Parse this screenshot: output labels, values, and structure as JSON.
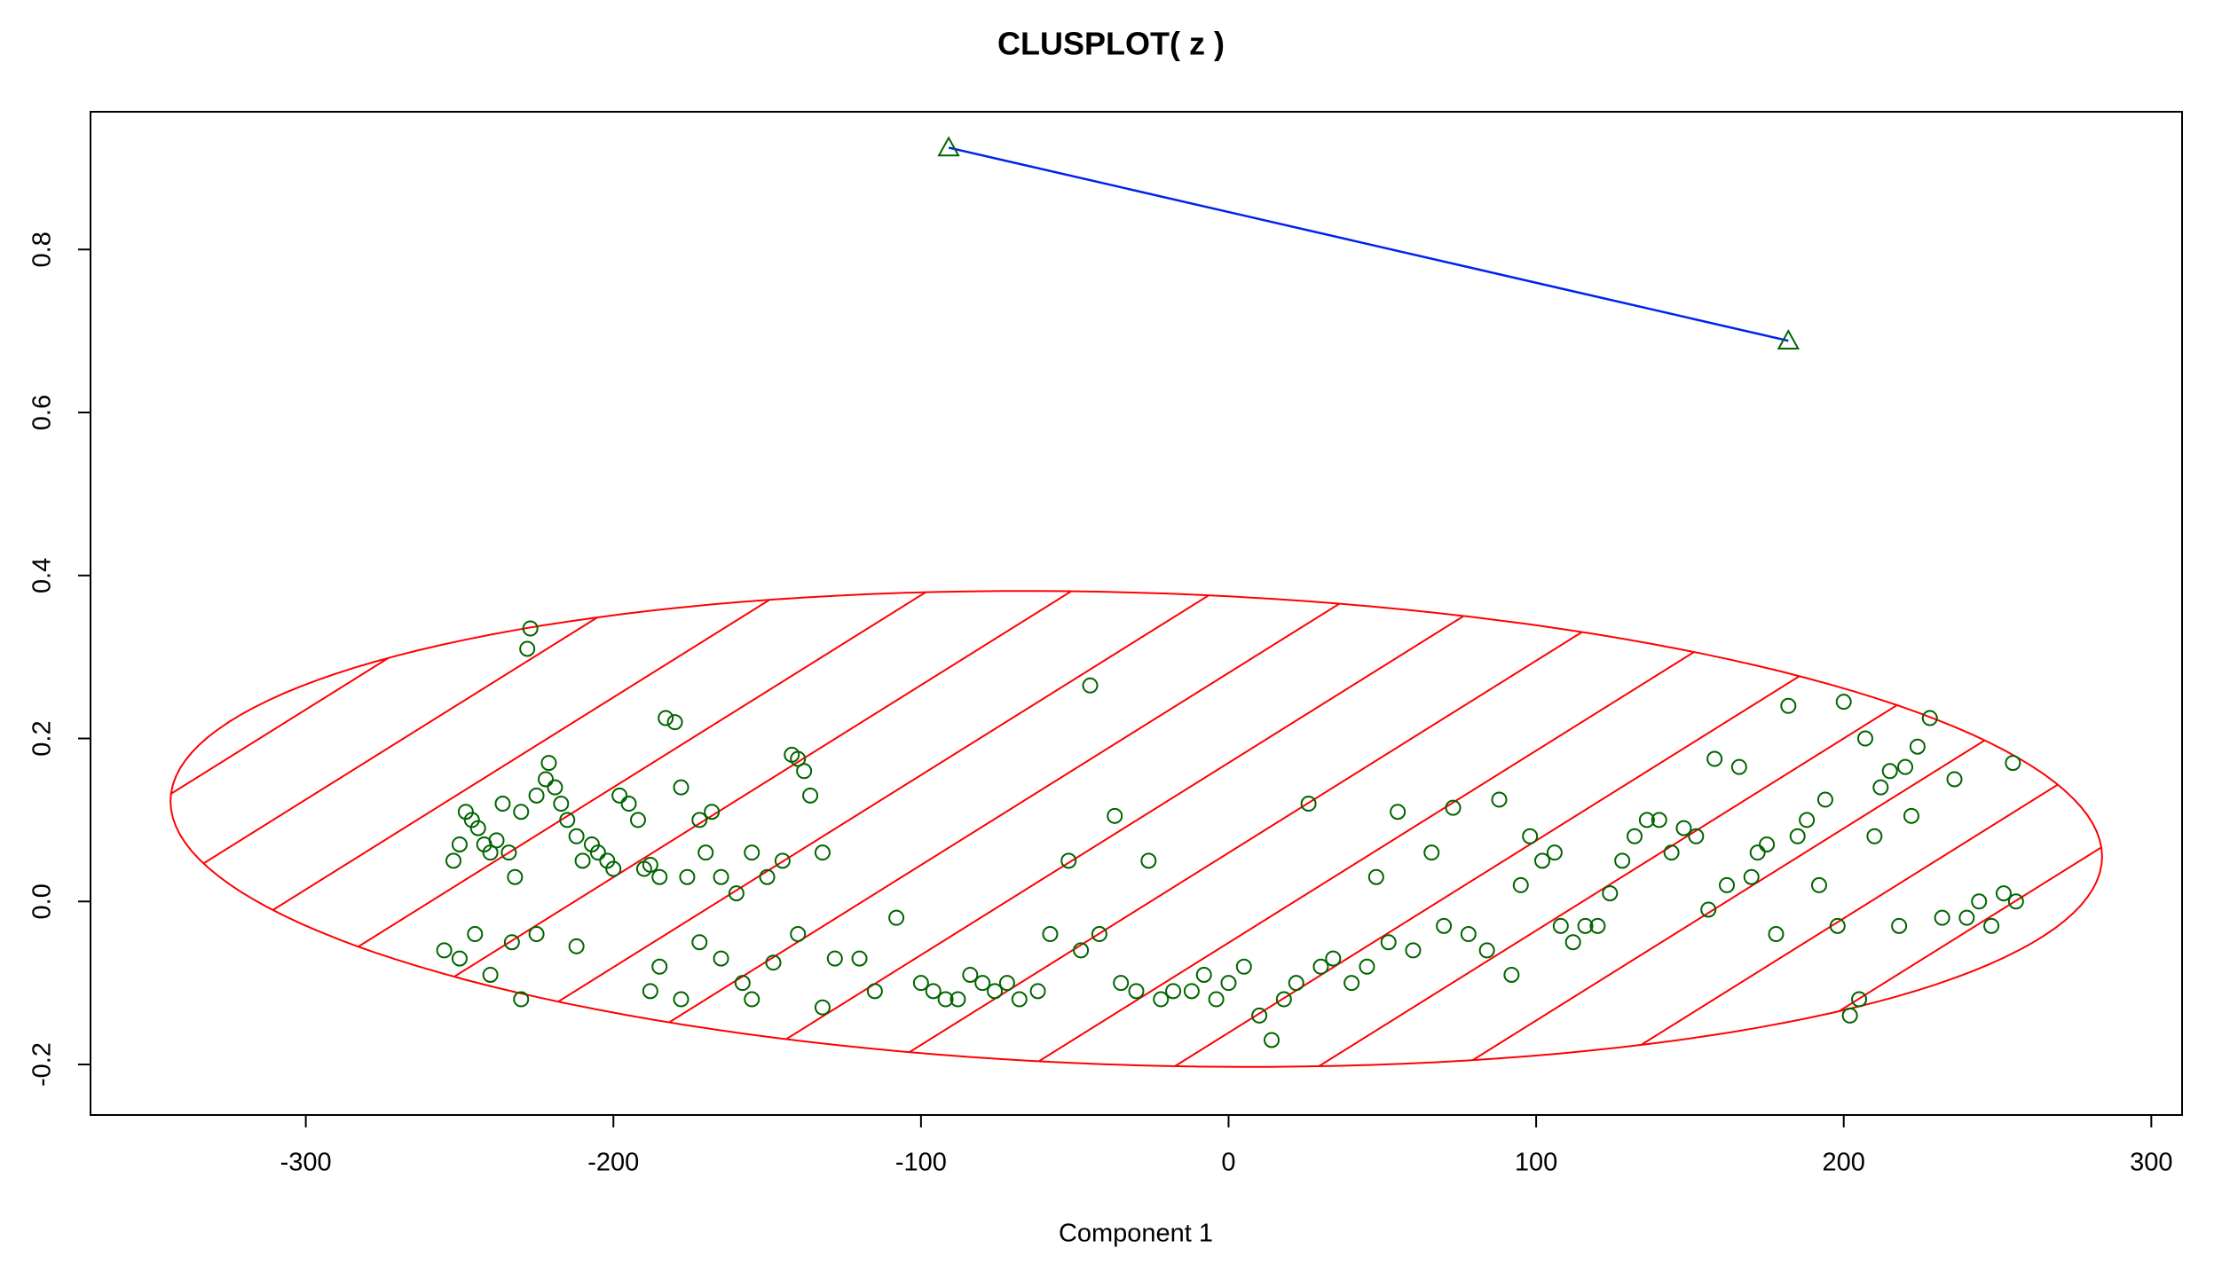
{
  "chart_data": {
    "type": "scatter",
    "title": "CLUSPLOT( z )",
    "xlabel": "Component 1",
    "x": [
      -252,
      -250,
      -248,
      -246,
      -244,
      -242,
      -240,
      -238,
      -236,
      -234,
      -232,
      -230,
      -228,
      -227,
      -225,
      -222,
      -221,
      -219,
      -217,
      -215,
      -212,
      -210,
      -207,
      -205,
      -202,
      -200,
      -198,
      -195,
      -192,
      -190,
      -188,
      -185,
      -183,
      -180,
      -178,
      -176,
      -172,
      -170,
      -168,
      -165,
      -160,
      -155,
      -150,
      -145,
      -142,
      -140,
      -138,
      -136,
      -132,
      -255,
      -250,
      -245,
      -240,
      -233,
      -230,
      -225,
      -212,
      -188,
      -185,
      -178,
      -172,
      -165,
      -158,
      -155,
      -148,
      -140,
      -132,
      -128,
      -120,
      -115,
      -108,
      -100,
      -96,
      -92,
      -88,
      -84,
      -80,
      -76,
      -72,
      -68,
      -62,
      -58,
      -52,
      -48,
      -45,
      -42,
      -37,
      -35,
      -30,
      -26,
      -22,
      -18,
      -12,
      -8,
      -4,
      0,
      5,
      10,
      14,
      18,
      22,
      26,
      30,
      34,
      40,
      45,
      48,
      52,
      55,
      60,
      66,
      70,
      73,
      78,
      84,
      88,
      92,
      95,
      98,
      102,
      106,
      108,
      112,
      116,
      120,
      124,
      128,
      132,
      136,
      140,
      144,
      148,
      152,
      156,
      158,
      162,
      166,
      170,
      172,
      175,
      178,
      182,
      185,
      188,
      192,
      194,
      198,
      200,
      202,
      205,
      207,
      210,
      212,
      215,
      218,
      220,
      222,
      224,
      228,
      232,
      236,
      240,
      244,
      248,
      252,
      255,
      256
    ],
    "y": [
      0.05,
      0.07,
      0.11,
      0.1,
      0.09,
      0.07,
      0.06,
      0.075,
      0.12,
      0.06,
      0.03,
      0.11,
      0.31,
      0.335,
      0.13,
      0.15,
      0.17,
      0.14,
      0.12,
      0.1,
      0.08,
      0.05,
      0.07,
      0.06,
      0.05,
      0.04,
      0.13,
      0.12,
      0.1,
      0.04,
      0.045,
      0.03,
      0.225,
      0.22,
      0.14,
      0.03,
      0.1,
      0.06,
      0.11,
      0.03,
      0.01,
      0.06,
      0.03,
      0.05,
      0.18,
      0.175,
      0.16,
      0.13,
      0.06,
      -0.06,
      -0.07,
      -0.04,
      -0.09,
      -0.05,
      -0.12,
      -0.04,
      -0.055,
      -0.11,
      -0.08,
      -0.12,
      -0.05,
      -0.07,
      -0.1,
      -0.12,
      -0.075,
      -0.04,
      -0.13,
      -0.07,
      -0.07,
      -0.11,
      -0.02,
      -0.1,
      -0.11,
      -0.12,
      -0.12,
      -0.09,
      -0.1,
      -0.11,
      -0.1,
      -0.12,
      -0.11,
      -0.04,
      0.05,
      -0.06,
      0.265,
      -0.04,
      0.105,
      -0.1,
      -0.11,
      0.05,
      -0.12,
      -0.11,
      -0.11,
      -0.09,
      -0.12,
      -0.1,
      -0.08,
      -0.14,
      -0.17,
      -0.12,
      -0.1,
      0.12,
      -0.08,
      -0.07,
      -0.1,
      -0.08,
      0.03,
      -0.05,
      0.11,
      -0.06,
      0.06,
      -0.03,
      0.115,
      -0.04,
      -0.06,
      0.125,
      -0.09,
      0.02,
      0.08,
      0.05,
      0.06,
      -0.03,
      -0.05,
      -0.03,
      -0.03,
      0.01,
      0.05,
      0.08,
      0.1,
      0.1,
      0.06,
      0.09,
      0.08,
      -0.01,
      0.175,
      0.02,
      0.165,
      0.03,
      0.06,
      0.07,
      -0.04,
      0.24,
      0.08,
      0.1,
      0.02,
      0.125,
      -0.03,
      0.245,
      -0.14,
      -0.12,
      0.2,
      0.08,
      0.14,
      0.16,
      -0.03,
      0.165,
      0.105,
      0.19,
      0.225,
      -0.02,
      0.15,
      -0.02,
      0.0,
      -0.03,
      0.01,
      0.17,
      0.0
    ],
    "point_color": "#006400",
    "centers": {
      "x": [
        -91,
        182
      ],
      "y": [
        0.925,
        0.688
      ],
      "color": "#006400",
      "link_color": "#0022ee"
    },
    "ellipse": {
      "center_x": -30,
      "center_y": 0.089,
      "x_radius": 314,
      "y_radius": 0.29,
      "tilt": -0.034,
      "color": "#ff0000"
    },
    "xlim": [
      -370,
      310
    ],
    "ylim": [
      -0.262,
      0.969
    ],
    "xticks": [
      -300,
      -200,
      -100,
      0,
      100,
      200,
      300
    ],
    "yticks": [
      -0.2,
      {
        "value": 0,
        "label": "0.0"
      },
      0.2,
      0.4,
      0.6,
      0.8
    ]
  }
}
